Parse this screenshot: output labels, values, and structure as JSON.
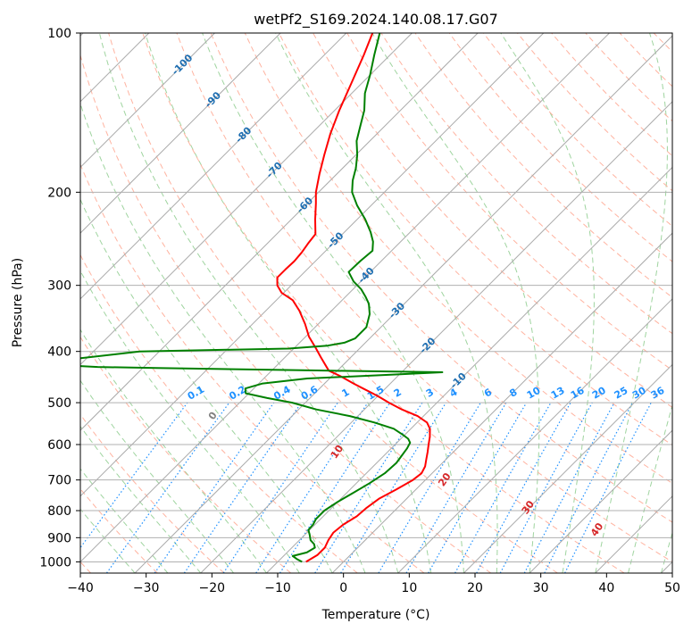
{
  "chart_data": {
    "type": "line",
    "title": "wetPf2_S169.2024.140.08.17.G07",
    "xlabel": "Temperature (°C)",
    "ylabel": "Pressure (hPa)",
    "xlim": [
      -40,
      50
    ],
    "ylim": [
      1050,
      100
    ],
    "y_scale": "log",
    "skew": true,
    "grid": true,
    "xticks": [
      -40,
      -30,
      -20,
      -10,
      0,
      10,
      20,
      30,
      40,
      50
    ],
    "xtick_labels": [
      "−40",
      "−30",
      "−20",
      "−10",
      "0",
      "10",
      "20",
      "30",
      "40",
      "50"
    ],
    "yticks": [
      100,
      200,
      300,
      400,
      500,
      600,
      700,
      800,
      900,
      1000
    ],
    "ytick_labels": [
      "100",
      "200",
      "300",
      "400",
      "500",
      "600",
      "700",
      "800",
      "900",
      "1000"
    ],
    "series": [
      {
        "role": "temperature",
        "color": "#ff0000",
        "points": [
          [
            1000,
            -5.7
          ],
          [
            970,
            -5.0
          ],
          [
            940,
            -5.0
          ],
          [
            910,
            -5.6
          ],
          [
            880,
            -6.0
          ],
          [
            850,
            -5.7
          ],
          [
            820,
            -4.9
          ],
          [
            790,
            -4.7
          ],
          [
            760,
            -4.2
          ],
          [
            730,
            -3.0
          ],
          [
            700,
            -1.9
          ],
          [
            680,
            -1.6
          ],
          [
            660,
            -2.1
          ],
          [
            640,
            -3.0
          ],
          [
            620,
            -3.9
          ],
          [
            600,
            -4.9
          ],
          [
            580,
            -5.9
          ],
          [
            560,
            -7.1
          ],
          [
            545,
            -8.5
          ],
          [
            530,
            -10.9
          ],
          [
            515,
            -14.3
          ],
          [
            500,
            -17.3
          ],
          [
            490,
            -19.2
          ],
          [
            480,
            -21.2
          ],
          [
            470,
            -23.4
          ],
          [
            460,
            -25.6
          ],
          [
            445,
            -28.8
          ],
          [
            435,
            -31.3
          ],
          [
            425,
            -32.6
          ],
          [
            410,
            -34.6
          ],
          [
            395,
            -36.6
          ],
          [
            375,
            -39.5
          ],
          [
            355,
            -42.0
          ],
          [
            335,
            -44.9
          ],
          [
            320,
            -47.5
          ],
          [
            310,
            -50.3
          ],
          [
            300,
            -52.1
          ],
          [
            290,
            -53.3
          ],
          [
            280,
            -53.3
          ],
          [
            270,
            -53.2
          ],
          [
            260,
            -53.4
          ],
          [
            250,
            -53.8
          ],
          [
            240,
            -54.1
          ],
          [
            225,
            -56.4
          ],
          [
            210,
            -58.7
          ],
          [
            200,
            -60.4
          ],
          [
            185,
            -62.6
          ],
          [
            170,
            -64.8
          ],
          [
            155,
            -67.1
          ],
          [
            140,
            -69.3
          ],
          [
            125,
            -71.5
          ],
          [
            110,
            -74.0
          ],
          [
            100,
            -76.0
          ]
        ]
      },
      {
        "role": "dewpoint",
        "color": "#008000",
        "points": [
          [
            1000,
            -6.3
          ],
          [
            990,
            -7.3
          ],
          [
            975,
            -8.6
          ],
          [
            960,
            -7.0
          ],
          [
            940,
            -6.5
          ],
          [
            925,
            -7.2
          ],
          [
            910,
            -8.3
          ],
          [
            890,
            -9.2
          ],
          [
            870,
            -10.2
          ],
          [
            850,
            -10.3
          ],
          [
            830,
            -10.7
          ],
          [
            800,
            -10.7
          ],
          [
            770,
            -10.0
          ],
          [
            740,
            -9.0
          ],
          [
            710,
            -8.0
          ],
          [
            680,
            -7.2
          ],
          [
            650,
            -7.0
          ],
          [
            630,
            -7.3
          ],
          [
            610,
            -7.6
          ],
          [
            595,
            -8.0
          ],
          [
            585,
            -8.9
          ],
          [
            575,
            -10.3
          ],
          [
            560,
            -12.6
          ],
          [
            545,
            -16.5
          ],
          [
            530,
            -21.2
          ],
          [
            515,
            -27.3
          ],
          [
            500,
            -32.0
          ],
          [
            490,
            -36.5
          ],
          [
            480,
            -40.5
          ],
          [
            470,
            -41.3
          ],
          [
            460,
            -39.4
          ],
          [
            450,
            -33.4
          ],
          [
            442,
            -20.2
          ],
          [
            438,
            -13.8
          ],
          [
            435,
            -30.9
          ],
          [
            430,
            -57.9
          ],
          [
            428,
            -67.0
          ],
          [
            425,
            -72.0
          ],
          [
            420,
            -72.6
          ],
          [
            412,
            -70.9
          ],
          [
            400,
            -63.0
          ],
          [
            395,
            -40.8
          ],
          [
            390,
            -35.3
          ],
          [
            385,
            -33.2
          ],
          [
            378,
            -32.2
          ],
          [
            360,
            -32.2
          ],
          [
            340,
            -33.7
          ],
          [
            325,
            -35.4
          ],
          [
            315,
            -37.0
          ],
          [
            305,
            -38.8
          ],
          [
            295,
            -41.1
          ],
          [
            283,
            -43.3
          ],
          [
            270,
            -43.2
          ],
          [
            258,
            -42.9
          ],
          [
            248,
            -44.2
          ],
          [
            238,
            -46.0
          ],
          [
            225,
            -48.8
          ],
          [
            212,
            -52.1
          ],
          [
            200,
            -54.9
          ],
          [
            190,
            -56.6
          ],
          [
            180,
            -58.0
          ],
          [
            170,
            -59.8
          ],
          [
            160,
            -62.0
          ],
          [
            150,
            -63.7
          ],
          [
            140,
            -65.5
          ],
          [
            130,
            -68.0
          ],
          [
            120,
            -70.0
          ],
          [
            110,
            -72.4
          ],
          [
            100,
            -74.9
          ]
        ]
      }
    ],
    "isotherm_labels": [
      "-100",
      "-90",
      "-80",
      "-70",
      "-60",
      "-50",
      "-40",
      "-30",
      "-20",
      "-10"
    ],
    "mixing_ratio_labels": [
      "0.1",
      "0.2",
      "0.4",
      "0.6",
      "1",
      "1.5",
      "2",
      "3",
      "4",
      "6",
      "8",
      "10",
      "13",
      "16",
      "20",
      "25",
      "30",
      "36"
    ],
    "moist_adiabat_labels": [
      "0",
      "10",
      "20",
      "30",
      "40"
    ],
    "colors": {
      "isotherm": "#aaaaaa",
      "dry_adiabat": "#ffb3a0",
      "moist_adiabat": "#9fd49f",
      "mixing_ratio": "#1e90ff",
      "isotherm_label": "#1f6fb2",
      "mixing_ratio_label": "#1e90ff",
      "moist_label": "#d62728",
      "zero_label": "#808080",
      "gridline": "#b0b0b0"
    }
  }
}
